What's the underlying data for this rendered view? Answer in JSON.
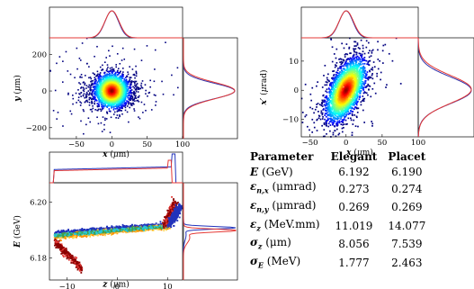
{
  "chart_data": [
    {
      "type": "scatter",
      "id": "transverse-xy",
      "xlabel": "x (μm)",
      "ylabel": "y (μm)",
      "xlim": [
        -88,
        100
      ],
      "ylim": [
        -260,
        290
      ],
      "xticks": [
        "−50",
        "0",
        "50",
        "100"
      ],
      "yticks": [
        "200",
        "0",
        "−200"
      ],
      "core": {
        "center": [
          0,
          0
        ],
        "sigma": [
          10,
          45
        ]
      },
      "marginal_x": {
        "series": [
          {
            "name": "",
            "color": "#3333aa"
          },
          {
            "name": "",
            "color": "#e53935"
          }
        ]
      },
      "marginal_y": {
        "series": [
          {
            "name": "",
            "color": "#3333aa"
          },
          {
            "name": "",
            "color": "#e53935"
          }
        ]
      }
    },
    {
      "type": "scatter",
      "id": "phase-space-xxp",
      "xlabel": "x (μm)",
      "ylabel": "x′ (μrad)",
      "xlim": [
        -62,
        100
      ],
      "ylim": [
        -16,
        18
      ],
      "xticks": [
        "−50",
        "0",
        "50",
        "100"
      ],
      "yticks": [
        "10",
        "0",
        "−10"
      ],
      "core": {
        "center": [
          0,
          0
        ],
        "sigma": [
          14,
          4.5
        ],
        "tilt": 0.22
      }
    },
    {
      "type": "scatter",
      "id": "longitudinal-zE",
      "xlabel": "z (μm)",
      "ylabel": "E (GeV)",
      "xlim": [
        -13.5,
        13
      ],
      "ylim": [
        6.172,
        6.207
      ],
      "xticks": [
        "−10",
        "0",
        "10"
      ],
      "yticks": [
        "6.20",
        "6.18"
      ],
      "series": [
        {
          "name": "",
          "color": "#2233bb"
        },
        {
          "name": "",
          "color": "#e53935"
        }
      ]
    }
  ],
  "table": {
    "headers": [
      "Parameter",
      "Elegant",
      "Placet"
    ],
    "rows": [
      {
        "sym": "E",
        "sub": "",
        "unit": " (GeV)",
        "elegant": "6.192",
        "placet": "6.190"
      },
      {
        "sym": "ε",
        "sub": "n,x",
        "unit": " (μmrad)",
        "elegant": "0.273",
        "placet": "0.274"
      },
      {
        "sym": "ε",
        "sub": "n,y",
        "unit": " (μmrad)",
        "elegant": "0.269",
        "placet": "0.269"
      },
      {
        "sym": "ε",
        "sub": "z",
        "unit": " (MeV.mm)",
        "elegant": "11.019",
        "placet": "14.077"
      },
      {
        "sym": "σ",
        "sub": "z",
        "unit": " (μm)",
        "elegant": "8.056",
        "placet": "7.539"
      },
      {
        "sym": "σ",
        "sub": "E",
        "unit": " (MeV)",
        "elegant": "1.777",
        "placet": "2.463"
      }
    ]
  },
  "colors": {
    "blue": "#2233bb",
    "red": "#e53935",
    "magenta": "#c2185b"
  }
}
